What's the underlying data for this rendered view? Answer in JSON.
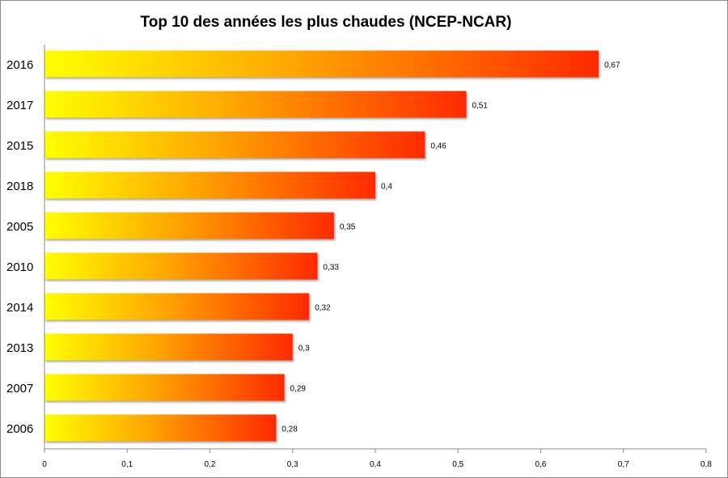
{
  "chart_data": {
    "type": "bar",
    "orientation": "horizontal",
    "title": "Top 10 des années les plus chaudes (NCEP-NCAR)",
    "categories": [
      "2016",
      "2017",
      "2015",
      "2018",
      "2005",
      "2010",
      "2014",
      "2013",
      "2007",
      "2006"
    ],
    "values": [
      0.67,
      0.51,
      0.46,
      0.4,
      0.35,
      0.33,
      0.32,
      0.3,
      0.29,
      0.28
    ],
    "value_labels": [
      "0,67",
      "0,51",
      "0,46",
      "0,4",
      "0,35",
      "0,33",
      "0,32",
      "0,3",
      "0,29",
      "0,28"
    ],
    "xlim": [
      0,
      0.8
    ],
    "x_ticks": [
      0,
      0.1,
      0.2,
      0.3,
      0.4,
      0.5,
      0.6,
      0.7,
      0.8
    ],
    "x_tick_labels": [
      "0",
      "0,1",
      "0,2",
      "0,3",
      "0,4",
      "0,5",
      "0,6",
      "0,7",
      "0,8"
    ],
    "xlabel": "",
    "ylabel": "",
    "grid": false,
    "legend": "none",
    "colors": {
      "gradient_start": "#ffff00",
      "gradient_mid": "#ffa500",
      "gradient_end": "#ff2a00",
      "axis": "#8c8c8c",
      "frame": "#8c8c8c"
    }
  }
}
